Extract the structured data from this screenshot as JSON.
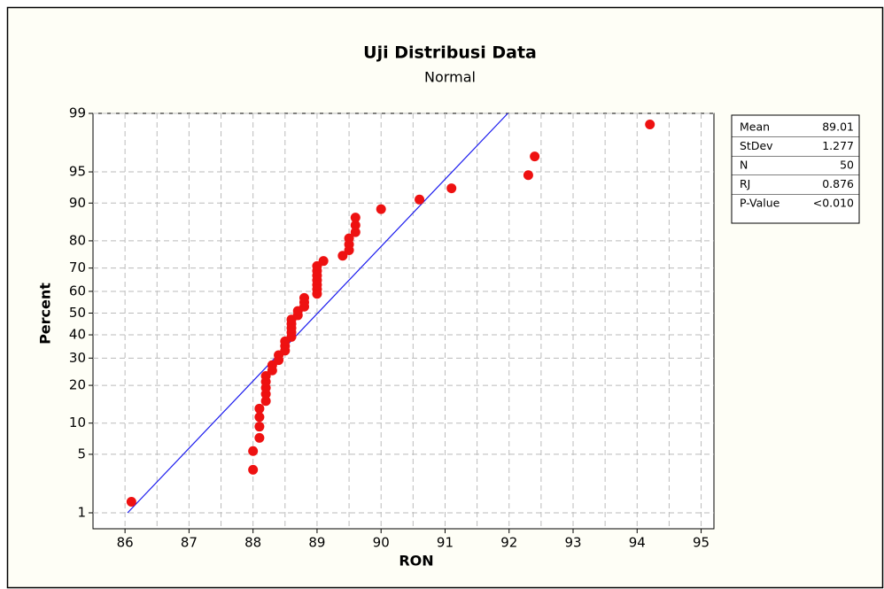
{
  "chart_data": {
    "type": "probability",
    "title": "Uji Distribusi Data",
    "subtitle": "Normal",
    "x_label": "RON",
    "y_label": "Percent",
    "y_scale": "normal-probability",
    "grid": true,
    "xlim": [
      85.5,
      95.2
    ],
    "xticks": [
      86,
      87,
      88,
      89,
      90,
      91,
      92,
      93,
      94,
      95
    ],
    "ylim": [
      0.6,
      99
    ],
    "yticks": [
      1,
      5,
      10,
      20,
      30,
      40,
      50,
      60,
      70,
      80,
      90,
      95,
      99
    ],
    "series": [
      {
        "name": "RON",
        "color": "#ee1111",
        "x": [
          86.1,
          88.0,
          88.0,
          88.1,
          88.1,
          88.1,
          88.1,
          88.2,
          88.2,
          88.2,
          88.2,
          88.2,
          88.3,
          88.3,
          88.4,
          88.4,
          88.5,
          88.5,
          88.5,
          88.6,
          88.6,
          88.6,
          88.6,
          88.6,
          88.7,
          88.7,
          88.8,
          88.8,
          88.8,
          89.0,
          89.0,
          89.0,
          89.0,
          89.0,
          89.0,
          89.0,
          89.1,
          89.4,
          89.5,
          89.5,
          89.5,
          89.6,
          89.6,
          89.6,
          90.0,
          90.6,
          91.1,
          92.3,
          92.4,
          94.2
        ],
        "values": [
          1.4,
          3.4,
          5.4,
          7.3,
          9.3,
          11.3,
          13.3,
          15.3,
          17.3,
          19.2,
          21.2,
          23.2,
          25.2,
          27.2,
          29.2,
          31.2,
          33.1,
          35.1,
          37.1,
          39.1,
          41.1,
          43.1,
          45.0,
          47.0,
          49.0,
          51.0,
          53.0,
          55.0,
          57.0,
          58.9,
          60.9,
          62.9,
          64.9,
          66.9,
          68.9,
          70.8,
          72.8,
          74.8,
          76.8,
          78.8,
          80.8,
          82.7,
          84.7,
          86.7,
          88.7,
          90.7,
          92.7,
          94.6,
          96.6,
          98.6
        ]
      }
    ],
    "fit_line": {
      "color": "#1a1aee",
      "x": [
        86.04,
        91.98
      ],
      "values": [
        1,
        99
      ]
    },
    "stats": [
      {
        "label": "Mean",
        "value": "89.01"
      },
      {
        "label": "StDev",
        "value": "1.277"
      },
      {
        "label": "N",
        "value": "50"
      },
      {
        "label": "RJ",
        "value": "0.876"
      },
      {
        "label": "P-Value",
        "value": "<0.010"
      }
    ]
  }
}
